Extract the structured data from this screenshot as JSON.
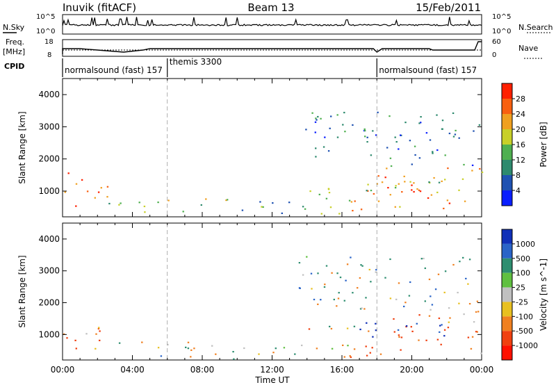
{
  "header": {
    "station": "Inuvik (fitACF)",
    "beam": "Beam 13",
    "date": "15/Feb/2011"
  },
  "side_labels": {
    "nsky": "N.Sky",
    "freq_line1": "Freq.",
    "freq_line2": "[MHz]",
    "cpid": "CPID",
    "nsearch": "N.Search",
    "nave": "Nave"
  },
  "strip_ticks": {
    "noise_left": [
      "10^5",
      "10^0"
    ],
    "noise_right": [
      "10^5",
      "10^0"
    ],
    "freq_left": [
      "18",
      "8"
    ],
    "freq_right": [
      "60",
      "0"
    ]
  },
  "cpid_segments": [
    {
      "label": "normalsound (fast) 157",
      "start_hour": 0,
      "end_hour": 6
    },
    {
      "label": "themis 3300",
      "start_hour": 6,
      "end_hour": 18
    },
    {
      "label": "normalsound (fast) 157",
      "start_hour": 18,
      "end_hour": 24
    }
  ],
  "x_axis": {
    "label": "Time UT",
    "ticks": [
      "00:00",
      "04:00",
      "08:00",
      "12:00",
      "16:00",
      "20:00",
      "00:00"
    ],
    "range_hours": [
      0,
      24
    ]
  },
  "power_panel": {
    "ylabel": "Slant Range [km]",
    "yticks": [
      "1000",
      "2000",
      "3000",
      "4000"
    ],
    "colorbar_label": "Power [dB]",
    "colorbar_ticks": [
      "4",
      "8",
      "12",
      "16",
      "20",
      "24",
      "28"
    ],
    "colors": [
      "#0a1eff",
      "#1f52b2",
      "#2e8a6e",
      "#4fb050",
      "#c8d028",
      "#f0a020",
      "#f86010",
      "#ff2000"
    ]
  },
  "velocity_panel": {
    "ylabel": "Slant Range [km]",
    "yticks": [
      "1000",
      "2000",
      "3000",
      "4000"
    ],
    "colorbar_label": "Velocity [m s^-1]",
    "colorbar_ticks": [
      "1000",
      "500",
      "100",
      "25",
      "-25",
      "-100",
      "-500",
      "-1000"
    ],
    "colors": [
      "#1030b8",
      "#2a64c8",
      "#2e8e70",
      "#60c040",
      "#c0c0c0",
      "#e8c020",
      "#f08020",
      "#f04010",
      "#ff1000"
    ]
  },
  "chart_data": {
    "type": "heatmap",
    "x_unit": "hours UT",
    "xlim": [
      0,
      24
    ],
    "ylim": [
      200,
      4500
    ],
    "regions": [
      {
        "name": "near_range_scatter_early",
        "x": [
          0,
          2.6
        ],
        "y": [
          500,
          1600
        ],
        "power_db": 28,
        "velocity": -300
      },
      {
        "name": "near_range_band_morning",
        "x": [
          2.6,
          9.5
        ],
        "y": [
          300,
          800
        ],
        "power_db": 16,
        "velocity": 40
      },
      {
        "name": "midday_patches",
        "x": [
          9.5,
          14
        ],
        "y": [
          200,
          700
        ],
        "power_db": 12,
        "velocity": 0
      },
      {
        "name": "afternoon_band",
        "x": [
          14,
          18
        ],
        "y": [
          250,
          1400
        ],
        "power_db": 20,
        "velocity": -200
      },
      {
        "name": "evening_main_band",
        "x": [
          18,
          24
        ],
        "y": [
          400,
          1800
        ],
        "power_db": 24,
        "velocity": -300
      },
      {
        "name": "evening_high_velocity",
        "x": [
          17,
          22
        ],
        "y": [
          900,
          1500
        ],
        "power_db": 16,
        "velocity": 700
      },
      {
        "name": "far_range_sparse",
        "x": [
          13.5,
          24
        ],
        "y": [
          1800,
          3500
        ],
        "power_db": 8,
        "velocity": 100
      }
    ]
  }
}
